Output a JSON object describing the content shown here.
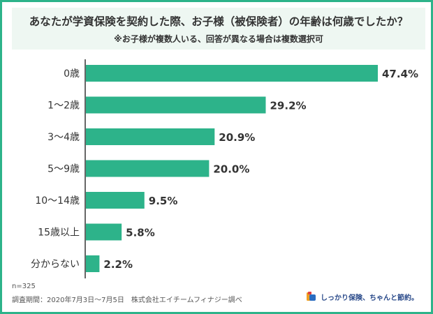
{
  "header": {
    "title": "あなたが学資保険を契約した際、お子様（被保険者）の年齢は何歳でしたか？",
    "subtitle": "※お子様が複数人いる、回答が異なる場合は複数選択可"
  },
  "chart_data": {
    "type": "bar",
    "orientation": "horizontal",
    "categories": [
      "0歳",
      "1〜2歳",
      "3〜4歳",
      "5〜9歳",
      "10〜14歳",
      "15歳以上",
      "分からない"
    ],
    "values": [
      47.4,
      29.2,
      20.9,
      20.0,
      9.5,
      5.8,
      2.2
    ],
    "value_labels": [
      "47.4%",
      "29.2%",
      "20.9%",
      "20.0%",
      "9.5%",
      "5.8%",
      "2.2%"
    ],
    "title": "あなたが学資保険を契約した際、お子様（被保険者）の年齢は何歳でしたか？",
    "grid": false,
    "bar_color": "#2db38a"
  },
  "footer": {
    "sample": "n=325",
    "source": "調査期間：2020年7月3日〜7月5日　株式会社エイチームフィナジー調べ"
  },
  "brand": {
    "text": "しっかり保険、ちゃんと節約。",
    "logo": "brand-logo-icon"
  },
  "colors": {
    "accent": "#2db38a",
    "title_bg": "#eef7f2"
  }
}
